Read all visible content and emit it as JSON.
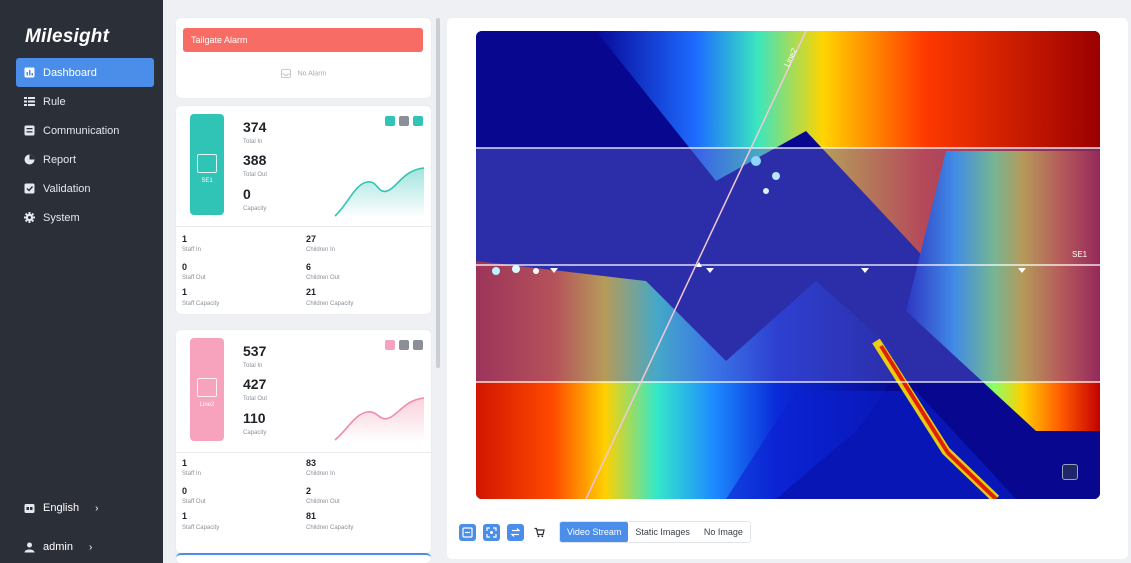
{
  "brand": {
    "logo": "Milesight"
  },
  "nav": [
    {
      "label": "Dashboard",
      "icon": "dashboard-icon",
      "active": true
    },
    {
      "label": "Rule",
      "icon": "list-icon"
    },
    {
      "label": "Communication",
      "icon": "communication-icon"
    },
    {
      "label": "Report",
      "icon": "pie-chart-icon"
    },
    {
      "label": "Validation",
      "icon": "validation-icon"
    },
    {
      "label": "System",
      "icon": "gear-icon"
    }
  ],
  "footer": {
    "language": "English",
    "user": "admin",
    "chevron": "›"
  },
  "alarm": {
    "title": "Tailgate Alarm",
    "empty": "No Alarm",
    "bar_color": "#f76d66"
  },
  "regions": [
    {
      "name": "SE1",
      "tile_color": "#2fc4b5",
      "total_in": "374",
      "total_in_label": "Total In",
      "total_out": "388",
      "total_out_label": "Total Out",
      "capacity": "0",
      "capacity_label": "Capacity",
      "staff_in": "1",
      "staff_in_label": "Staff In",
      "staff_out": "0",
      "staff_out_label": "Staff Out",
      "staff_capacity": "1",
      "staff_capacity_label": "Staff Capacity",
      "children_in": "27",
      "children_in_label": "Children In",
      "children_out": "6",
      "children_out_label": "Children Out",
      "children_capacity": "21",
      "children_capacity_label": "Children Capacity"
    },
    {
      "name": "Line2",
      "tile_color": "#f7a3bd",
      "total_in": "537",
      "total_in_label": "Total In",
      "total_out": "427",
      "total_out_label": "Total Out",
      "capacity": "110",
      "capacity_label": "Capacity",
      "staff_in": "1",
      "staff_in_label": "Staff In",
      "staff_out": "0",
      "staff_out_label": "Staff Out",
      "staff_capacity": "1",
      "staff_capacity_label": "Staff Capacity",
      "children_in": "83",
      "children_in_label": "Children In",
      "children_out": "2",
      "children_out_label": "Children Out",
      "children_capacity": "81",
      "children_capacity_label": "Children Capacity"
    }
  ],
  "video": {
    "line_label": "Line2",
    "region_label": "SE1",
    "modes": [
      "Video Stream",
      "Static Images",
      "No Image"
    ],
    "active_mode": "Video Stream",
    "accent": "#4a8eea"
  }
}
